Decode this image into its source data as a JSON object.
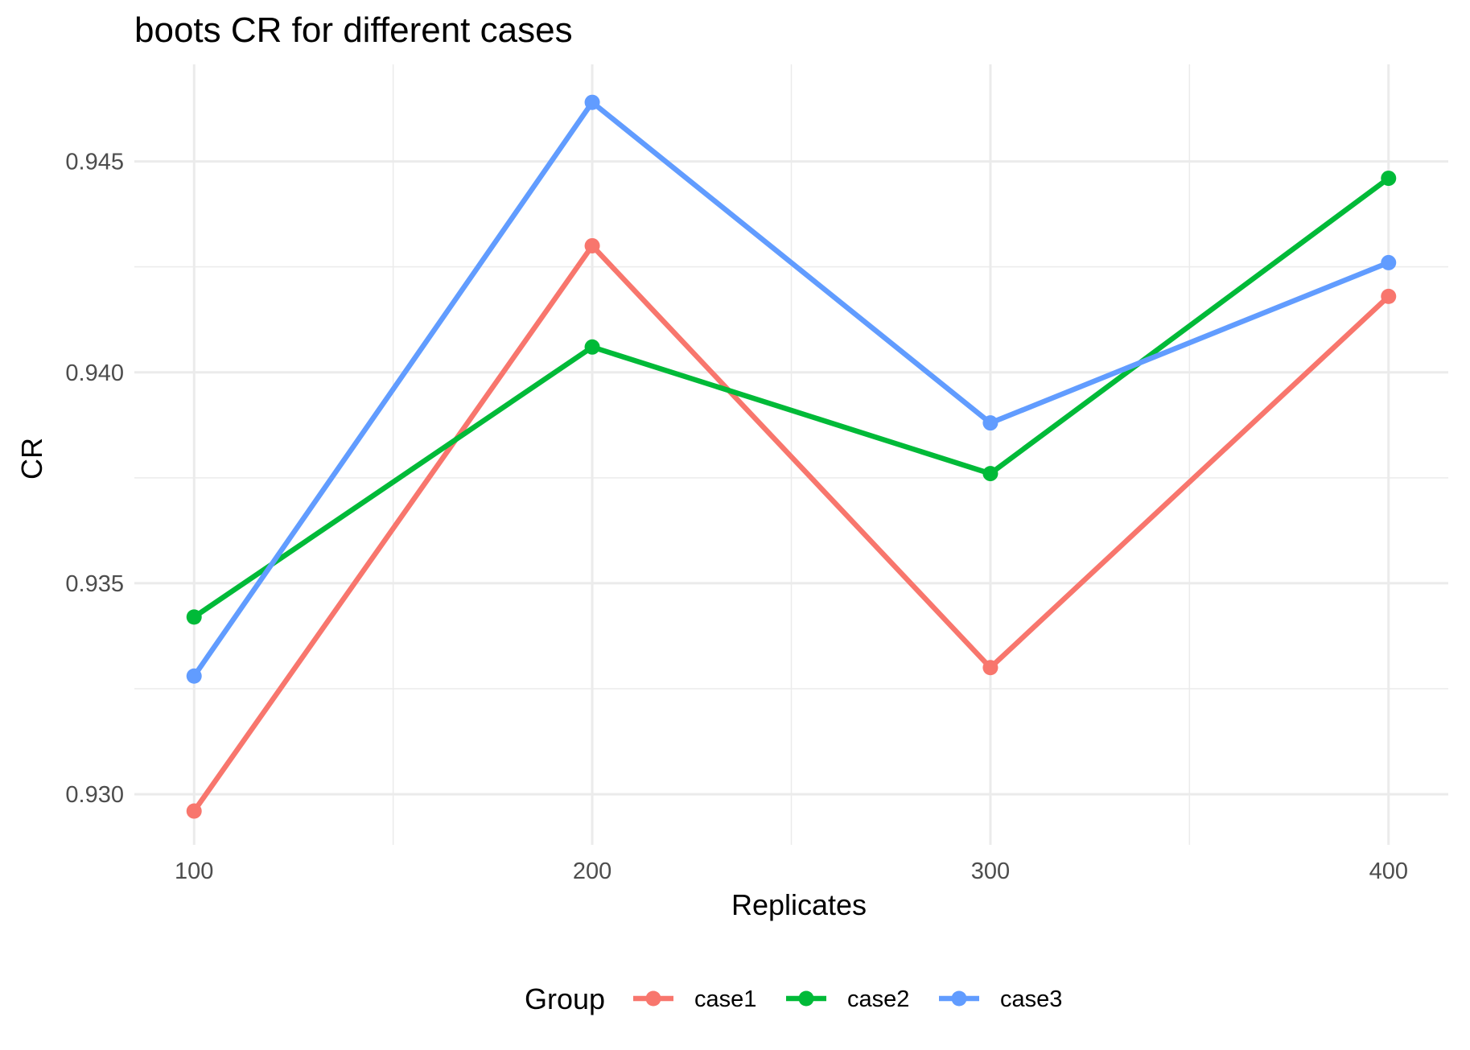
{
  "chart_data": {
    "type": "line",
    "title": "boots CR for different cases",
    "xlabel": "Replicates",
    "ylabel": "CR",
    "x": [
      100,
      200,
      300,
      400
    ],
    "x_ticks": [
      "100",
      "200",
      "300",
      "400"
    ],
    "y_ticks": [
      "0.930",
      "0.935",
      "0.940",
      "0.945"
    ],
    "xlim": [
      85,
      415
    ],
    "ylim": [
      0.9288,
      0.9473
    ],
    "series": [
      {
        "name": "case1",
        "color": "#F8766D",
        "values": [
          0.9296,
          0.943,
          0.933,
          0.9418
        ]
      },
      {
        "name": "case2",
        "color": "#00BA38",
        "values": [
          0.9342,
          0.9406,
          0.9376,
          0.9446
        ]
      },
      {
        "name": "case3",
        "color": "#619CFF",
        "values": [
          0.9328,
          0.9464,
          0.9388,
          0.9426
        ]
      }
    ],
    "grid": true,
    "legend": {
      "title": "Group",
      "position": "bottom"
    }
  }
}
